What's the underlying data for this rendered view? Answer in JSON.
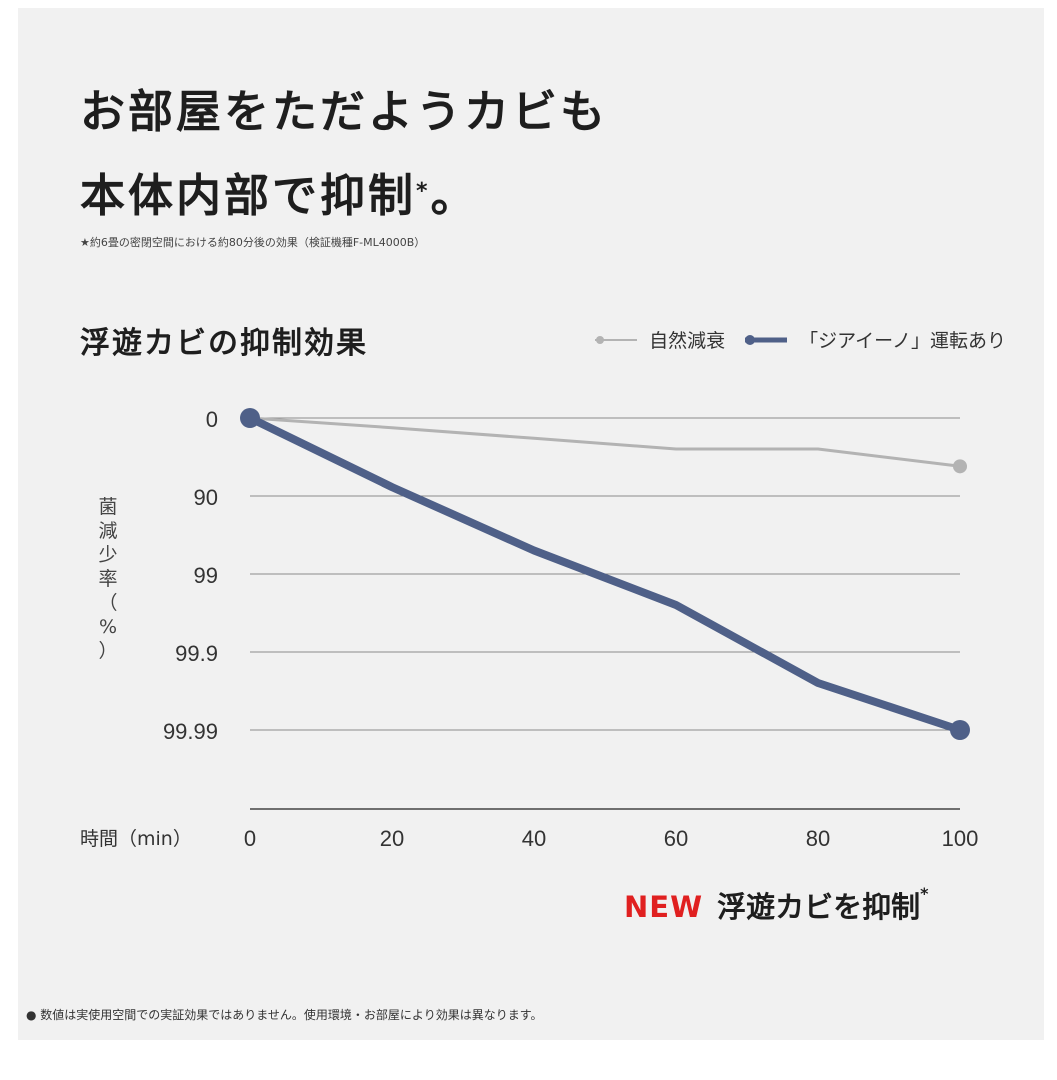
{
  "headline": {
    "line1": "お部屋をただようカビも",
    "line2": "本体内部で抑制",
    "line2_star": "*",
    "line2_end": "。"
  },
  "subnote": "★約6畳の密閉空間における約80分後の効果（検証機種F-ML4000B）",
  "callout": {
    "tag": "NEW",
    "text": "浮遊カビを抑制",
    "star": "*"
  },
  "footnote": "● 数値は実使用空間での実証効果ではありません。使用環境・お部屋により効果は異なります。",
  "colors": {
    "natural": "#b3b3b3",
    "ziaino": "#4f6088",
    "accent": "#e02020",
    "grid": "#8a8a8a"
  },
  "chart_data": {
    "type": "line",
    "title": "浮遊カビの抑制効果",
    "xlabel": "時間（min）",
    "ylabel": "菌減少率（%）",
    "x": [
      0,
      20,
      40,
      60,
      80,
      100
    ],
    "x_ticks": [
      "0",
      "20",
      "40",
      "60",
      "80",
      "100"
    ],
    "y_ticks": [
      "0",
      "90",
      "99",
      "99.9",
      "99.99"
    ],
    "y_scale": "log-reduction",
    "ylim": [
      0,
      99.999
    ],
    "xlim": [
      0,
      100
    ],
    "legend_position": "top-right",
    "grid": true,
    "series": [
      {
        "name": "自然減衰",
        "x": [
          0,
          20,
          40,
          60,
          80,
          100
        ],
        "y": [
          0,
          25,
          45,
          60,
          60,
          76
        ],
        "markers": "endpoints"
      },
      {
        "name": "「ジアイーノ」運転あり",
        "x": [
          0,
          20,
          40,
          60,
          80,
          100
        ],
        "y": [
          0,
          87,
          98,
          99.6,
          99.96,
          99.99
        ],
        "markers": "endpoints"
      }
    ]
  }
}
